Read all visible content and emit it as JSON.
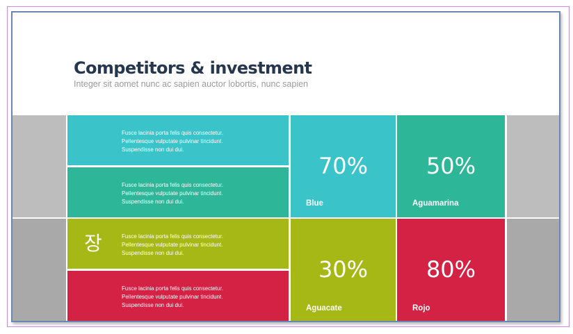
{
  "slide": {
    "title": "Competitors & investment",
    "subtitle": "Integer sit aomet nunc ac sapien auctor lobortis, nunc sapien"
  },
  "text_blocks": [
    {
      "lines": [
        "Fusce lacinia  porta  felis quis consectetur.",
        "Pellentesque  vulputate pulvinar tincidunt.",
        "Suspendisse non dui dui."
      ]
    },
    {
      "lines": [
        "Fusce lacinia  porta  felis quis consectetur.",
        "Pellentesque  vulputate pulvinar tincidunt.",
        "Suspendisse non dui dui."
      ]
    },
    {
      "lines": [
        "Fusce lacinia  porta  felis quis consectetur.",
        "Pellentesque  vulputate pulvinar tincidunt.",
        "Suspendisse non dui dui."
      ],
      "icon_char": "장"
    },
    {
      "lines": [
        "Fusce lacinia  porta  felis quis consectetur.",
        "Pellentesque  vulputate pulvinar tincidunt.",
        "Suspendisse non dui dui."
      ]
    }
  ],
  "stats": [
    {
      "value": "70%",
      "label": "Blue",
      "color": "#3ac4c9"
    },
    {
      "value": "50%",
      "label": "Aguamarina",
      "color": "#2db697"
    },
    {
      "value": "30%",
      "label": "Aguacate",
      "color": "#a5b816"
    },
    {
      "value": "80%",
      "label": "Rojo",
      "color": "#d42244"
    }
  ],
  "colors": {
    "title": "#26364d",
    "gray_tile": "#bdbdbd",
    "frame": "#6a86b4"
  }
}
